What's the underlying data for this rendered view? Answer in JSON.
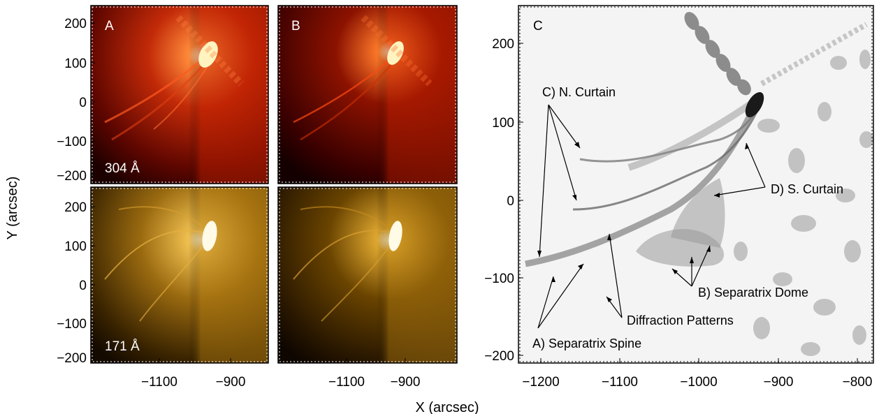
{
  "axes": {
    "xlabel": "X (arcsec)",
    "ylabel": "Y (arcsec)",
    "left_y_ticks": [
      "200",
      "100",
      "0",
      "−100",
      "−200"
    ],
    "left_x_ticks": [
      "−1100",
      "−900"
    ],
    "right_y_ticks": [
      "200",
      "100",
      "0",
      "−100",
      "−200"
    ],
    "right_x_ticks": [
      "−1200",
      "−1100",
      "−1000",
      "−900",
      "−800"
    ]
  },
  "panels": {
    "a": {
      "letter": "A",
      "wavelength": "304 Å"
    },
    "b": {
      "letter": "B"
    },
    "a2": {
      "wavelength": "171 Å"
    },
    "c": {
      "letter": "C"
    }
  },
  "annotations": {
    "n_curtain": "C) N. Curtain",
    "s_curtain": "D) S. Curtain",
    "separatrix_dome": "B) Separatrix Dome",
    "diffraction": "Diffraction Patterns",
    "separatrix_spine": "A) Separatrix Spine"
  },
  "colors": {
    "band_304": "#b41400",
    "band_171": "#c8961e",
    "panel_c_background": "#f4f4f4"
  }
}
